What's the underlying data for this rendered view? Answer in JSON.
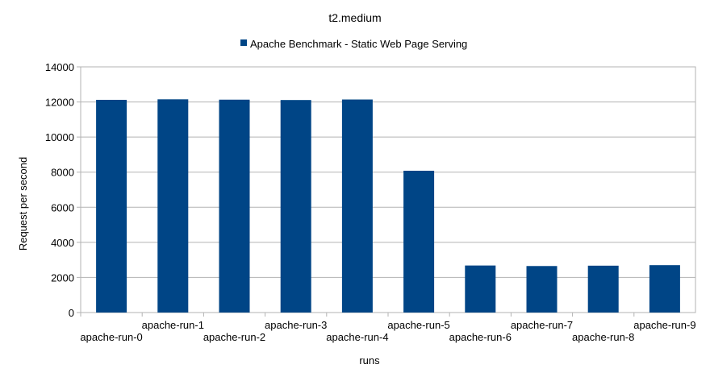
{
  "chart_data": {
    "type": "bar",
    "title": "t2.medium",
    "xlabel": "runs",
    "ylabel": "Request per second",
    "ylim": [
      0,
      14000
    ],
    "yticks": [
      0,
      2000,
      4000,
      6000,
      8000,
      10000,
      12000,
      14000
    ],
    "grid": true,
    "legend_position": "top",
    "categories": [
      "apache-run-0",
      "apache-run-1",
      "apache-run-2",
      "apache-run-3",
      "apache-run-4",
      "apache-run-5",
      "apache-run-6",
      "apache-run-7",
      "apache-run-8",
      "apache-run-9"
    ],
    "series": [
      {
        "name": "Apache Benchmark - Static Web Page Serving",
        "color": "#004586",
        "values": [
          12120,
          12150,
          12130,
          12110,
          12140,
          8080,
          2680,
          2650,
          2670,
          2700
        ]
      }
    ]
  }
}
